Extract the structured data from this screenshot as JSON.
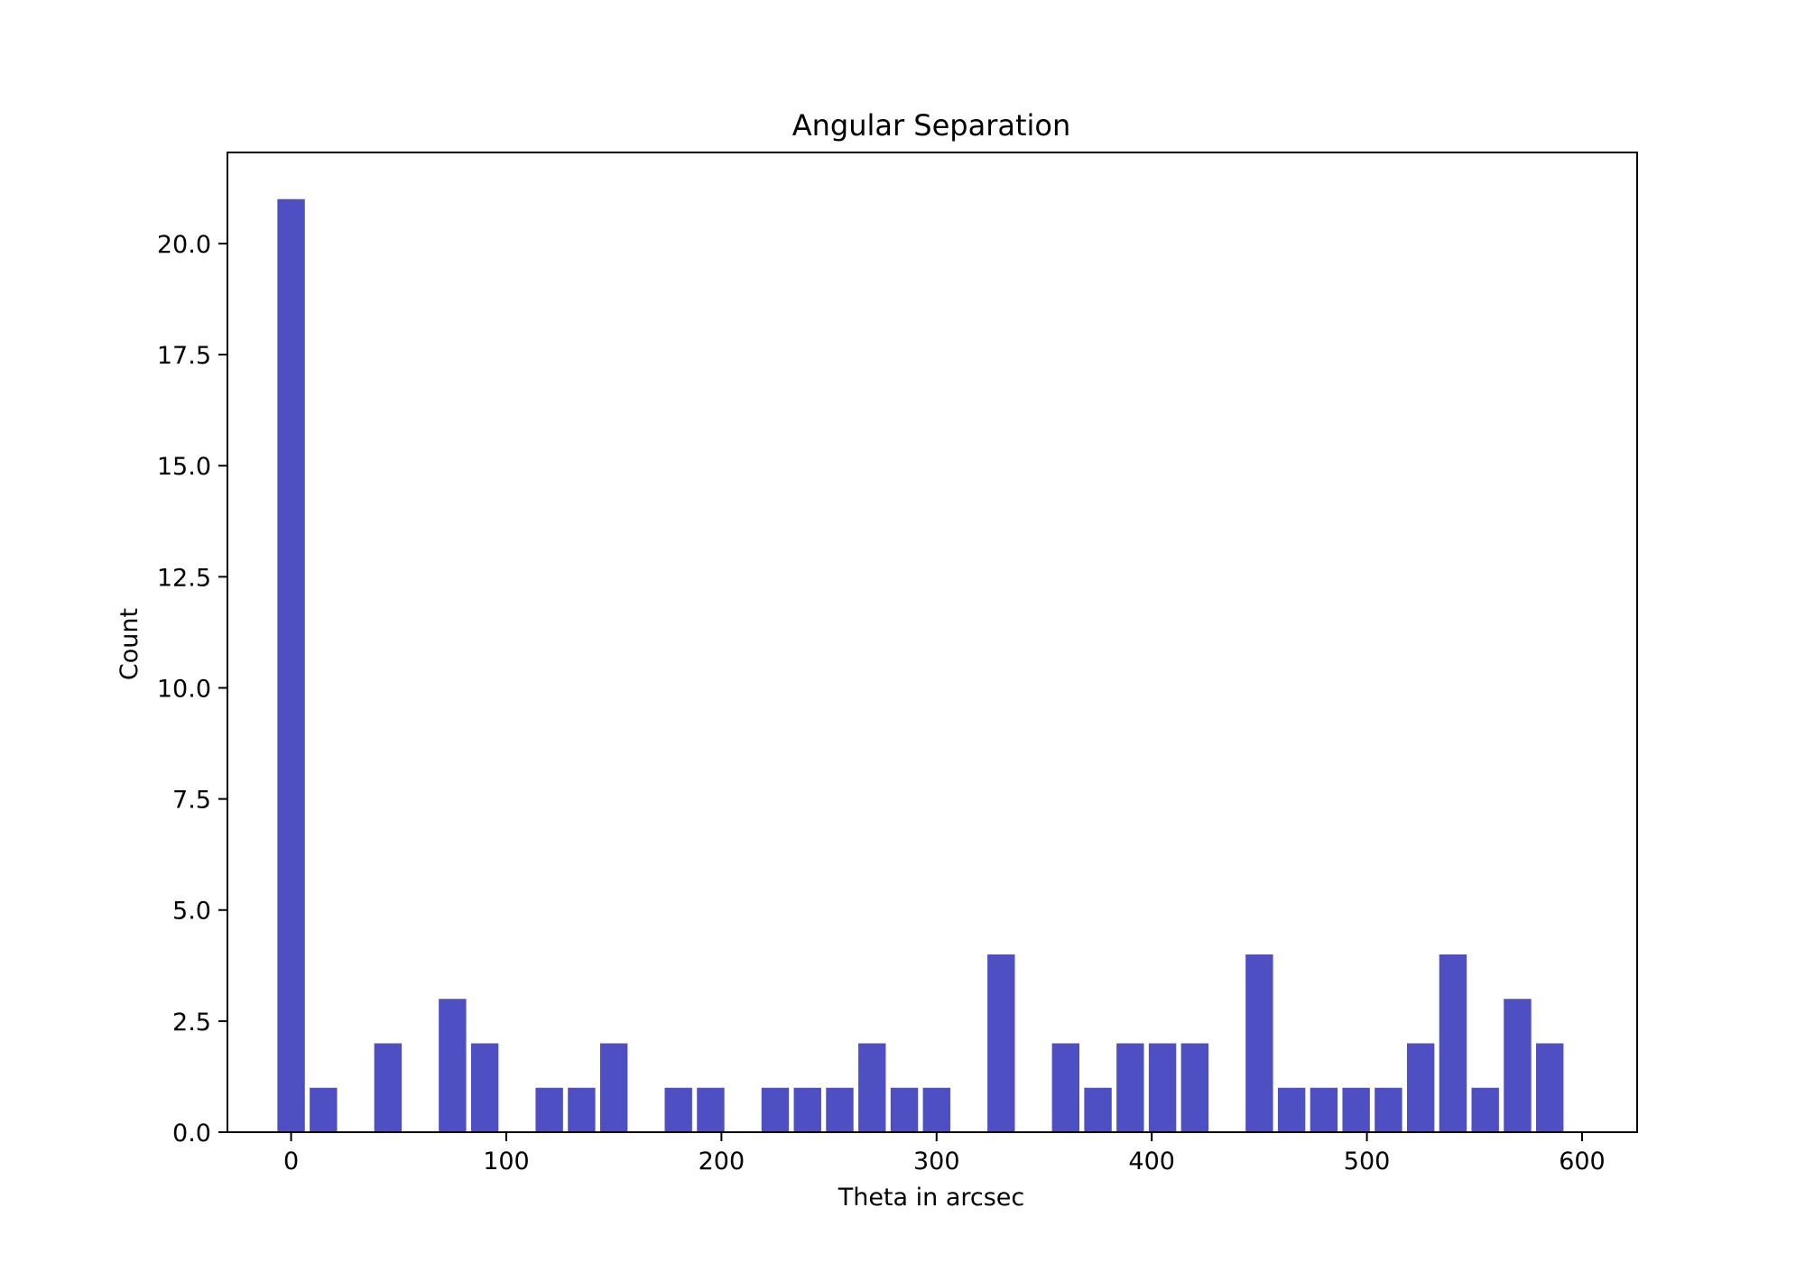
{
  "chart_data": {
    "type": "bar",
    "title": "Angular Separation",
    "xlabel": "Theta in arcsec",
    "ylabel": "Count",
    "x": [
      0,
      15,
      45,
      75,
      90,
      120,
      135,
      150,
      180,
      195,
      225,
      240,
      255,
      270,
      285,
      300,
      330,
      360,
      375,
      390,
      405,
      420,
      450,
      465,
      480,
      495,
      510,
      525,
      540,
      555,
      570,
      585
    ],
    "values": [
      21,
      1,
      2,
      3,
      2,
      1,
      1,
      2,
      1,
      1,
      1,
      1,
      1,
      2,
      1,
      1,
      4,
      2,
      1,
      2,
      2,
      2,
      4,
      1,
      1,
      1,
      1,
      2,
      4,
      1,
      3,
      2
    ],
    "bar_width": 12.75,
    "xlim": [
      -29.6,
      625.6
    ],
    "ylim": [
      0,
      22.05
    ],
    "xticks": [
      0,
      100,
      200,
      300,
      400,
      500,
      600
    ],
    "xtick_labels": [
      "0",
      "100",
      "200",
      "300",
      "400",
      "500",
      "600"
    ],
    "yticks": [
      0,
      2.5,
      5,
      7.5,
      10,
      12.5,
      15,
      17.5,
      20
    ],
    "ytick_labels": [
      "0.0",
      "2.5",
      "5.0",
      "7.5",
      "10.0",
      "12.5",
      "15.0",
      "17.5",
      "20.0"
    ],
    "bar_color": "#4f4fc4",
    "grid": false,
    "legend": "none"
  }
}
